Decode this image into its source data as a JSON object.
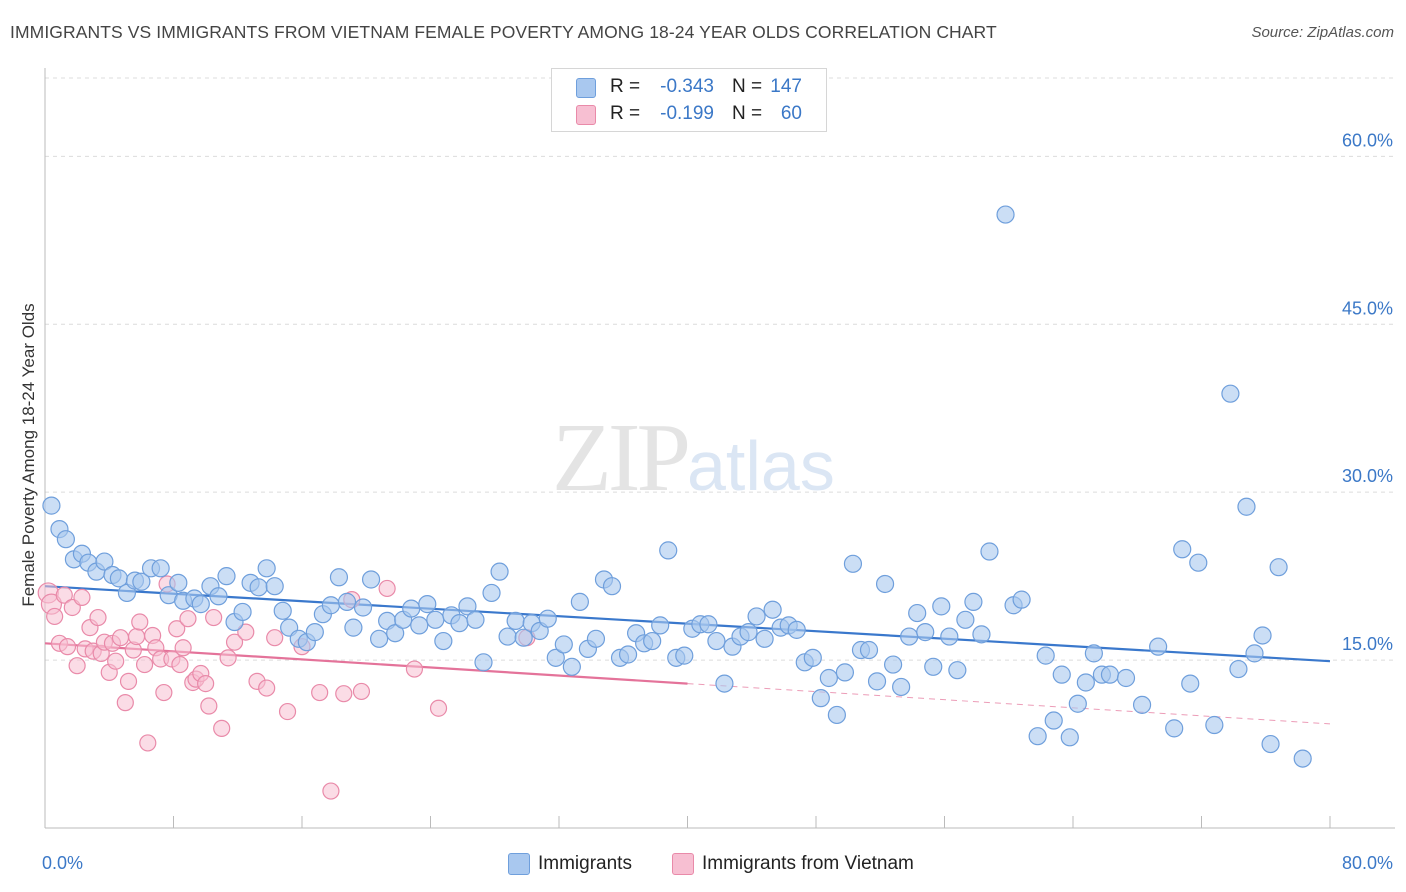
{
  "header": {
    "title": "IMMIGRANTS VS IMMIGRANTS FROM VIETNAM FEMALE POVERTY AMONG 18-24 YEAR OLDS CORRELATION CHART",
    "source": "Source: ZipAtlas.com"
  },
  "watermark": {
    "zip": "ZIP",
    "atlas": "atlas"
  },
  "legend": {
    "rows": [
      {
        "r_label": "R =",
        "r_value": "-0.343",
        "n_label": "N =",
        "n_value": "147",
        "color": "#a9c8ef",
        "border": "#6f9fdc"
      },
      {
        "r_label": "R =",
        "r_value": "-0.199",
        "n_label": "N =",
        "n_value": "60",
        "color": "#f7bfd2",
        "border": "#e98aa9"
      }
    ]
  },
  "bottom_legend": {
    "immigrants": "Immigrants",
    "vietnam": "Immigrants from Vietnam"
  },
  "colors": {
    "blue_fill": "#a9c8ef",
    "blue_stroke": "#6f9fdc",
    "blue_line": "#3a78cc",
    "pink_fill": "#f7bfd2",
    "pink_stroke": "#e98aa9",
    "pink_line": "#e4739a",
    "tick_text": "#3b78c7",
    "grid": "#dcdcdc"
  },
  "chart_data": {
    "type": "scatter",
    "title": "IMMIGRANTS VS IMMIGRANTS FROM VIETNAM FEMALE POVERTY AMONG 18-24 YEAR OLDS CORRELATION CHART",
    "xlabel": "",
    "ylabel": "Female Poverty Among 18-24 Year Olds",
    "xlim": [
      0,
      80
    ],
    "ylim": [
      0,
      67
    ],
    "x_tick_labels": [
      "0.0%",
      "80.0%"
    ],
    "y_ticks": [
      15,
      30,
      45,
      60
    ],
    "y_tick_labels": [
      "15.0%",
      "30.0%",
      "45.0%",
      "60.0%"
    ],
    "grid": true,
    "legend_position": "top-center",
    "series": [
      {
        "name": "Immigrants",
        "trend": {
          "x": [
            0,
            80
          ],
          "y": [
            21.6,
            14.9
          ],
          "dashed_from": null
        },
        "points": [
          [
            0.4,
            28.8
          ],
          [
            0.9,
            26.7
          ],
          [
            1.3,
            25.8
          ],
          [
            1.8,
            24.0
          ],
          [
            2.3,
            24.5
          ],
          [
            2.7,
            23.7
          ],
          [
            3.2,
            22.9
          ],
          [
            3.7,
            23.8
          ],
          [
            4.2,
            22.6
          ],
          [
            4.6,
            22.3
          ],
          [
            5.1,
            21.0
          ],
          [
            5.6,
            22.1
          ],
          [
            6.0,
            22.0
          ],
          [
            6.6,
            23.2
          ],
          [
            7.2,
            23.2
          ],
          [
            7.7,
            20.8
          ],
          [
            8.3,
            21.9
          ],
          [
            8.6,
            20.3
          ],
          [
            9.3,
            20.5
          ],
          [
            9.7,
            20.0
          ],
          [
            10.3,
            21.6
          ],
          [
            10.8,
            20.7
          ],
          [
            11.3,
            22.5
          ],
          [
            11.8,
            18.4
          ],
          [
            12.3,
            19.3
          ],
          [
            12.8,
            21.9
          ],
          [
            13.3,
            21.5
          ],
          [
            13.8,
            23.2
          ],
          [
            14.3,
            21.6
          ],
          [
            14.8,
            19.4
          ],
          [
            15.2,
            17.9
          ],
          [
            15.8,
            16.9
          ],
          [
            16.3,
            16.6
          ],
          [
            16.8,
            17.5
          ],
          [
            17.3,
            19.1
          ],
          [
            17.8,
            19.9
          ],
          [
            18.3,
            22.4
          ],
          [
            18.8,
            20.2
          ],
          [
            19.2,
            17.9
          ],
          [
            19.8,
            19.7
          ],
          [
            20.3,
            22.2
          ],
          [
            20.8,
            16.9
          ],
          [
            21.3,
            18.5
          ],
          [
            21.8,
            17.4
          ],
          [
            22.3,
            18.6
          ],
          [
            22.8,
            19.6
          ],
          [
            23.3,
            18.1
          ],
          [
            23.8,
            20.0
          ],
          [
            24.3,
            18.6
          ],
          [
            24.8,
            16.7
          ],
          [
            25.3,
            19.0
          ],
          [
            25.8,
            18.3
          ],
          [
            26.3,
            19.8
          ],
          [
            26.8,
            18.6
          ],
          [
            27.3,
            14.8
          ],
          [
            27.8,
            21.0
          ],
          [
            28.3,
            22.9
          ],
          [
            28.8,
            17.1
          ],
          [
            29.3,
            18.5
          ],
          [
            29.8,
            17.0
          ],
          [
            30.3,
            18.3
          ],
          [
            30.8,
            17.6
          ],
          [
            31.3,
            18.7
          ],
          [
            31.8,
            15.2
          ],
          [
            32.3,
            16.4
          ],
          [
            32.8,
            14.4
          ],
          [
            33.3,
            20.2
          ],
          [
            33.8,
            16.0
          ],
          [
            34.3,
            16.9
          ],
          [
            34.8,
            22.2
          ],
          [
            35.3,
            21.6
          ],
          [
            35.8,
            15.2
          ],
          [
            36.3,
            15.5
          ],
          [
            36.8,
            17.4
          ],
          [
            37.3,
            16.5
          ],
          [
            37.8,
            16.7
          ],
          [
            38.3,
            18.1
          ],
          [
            38.8,
            24.8
          ],
          [
            39.3,
            15.2
          ],
          [
            39.8,
            15.4
          ],
          [
            40.3,
            17.8
          ],
          [
            40.8,
            18.2
          ],
          [
            41.3,
            18.2
          ],
          [
            41.8,
            16.7
          ],
          [
            42.3,
            12.9
          ],
          [
            42.8,
            16.2
          ],
          [
            43.3,
            17.1
          ],
          [
            43.8,
            17.5
          ],
          [
            44.3,
            18.9
          ],
          [
            44.8,
            16.9
          ],
          [
            45.3,
            19.5
          ],
          [
            45.8,
            17.9
          ],
          [
            46.3,
            18.1
          ],
          [
            46.8,
            17.7
          ],
          [
            47.3,
            14.8
          ],
          [
            47.8,
            15.2
          ],
          [
            48.3,
            11.6
          ],
          [
            48.8,
            13.4
          ],
          [
            49.3,
            10.1
          ],
          [
            49.8,
            13.9
          ],
          [
            50.3,
            23.6
          ],
          [
            50.8,
            15.9
          ],
          [
            51.3,
            15.9
          ],
          [
            51.8,
            13.1
          ],
          [
            52.3,
            21.8
          ],
          [
            52.8,
            14.6
          ],
          [
            53.3,
            12.6
          ],
          [
            53.8,
            17.1
          ],
          [
            54.3,
            19.2
          ],
          [
            54.8,
            17.5
          ],
          [
            55.3,
            14.4
          ],
          [
            55.8,
            19.8
          ],
          [
            56.3,
            17.1
          ],
          [
            56.8,
            14.1
          ],
          [
            57.3,
            18.6
          ],
          [
            57.8,
            20.2
          ],
          [
            58.3,
            17.3
          ],
          [
            58.8,
            24.7
          ],
          [
            59.8,
            54.8
          ],
          [
            60.3,
            19.9
          ],
          [
            60.8,
            20.4
          ],
          [
            61.8,
            8.2
          ],
          [
            62.3,
            15.4
          ],
          [
            62.8,
            9.6
          ],
          [
            63.3,
            13.7
          ],
          [
            63.8,
            8.1
          ],
          [
            64.3,
            11.1
          ],
          [
            64.8,
            13.0
          ],
          [
            65.3,
            15.6
          ],
          [
            65.8,
            13.7
          ],
          [
            66.3,
            13.7
          ],
          [
            67.3,
            13.4
          ],
          [
            68.3,
            11.0
          ],
          [
            69.3,
            16.2
          ],
          [
            70.3,
            8.9
          ],
          [
            70.8,
            24.9
          ],
          [
            71.3,
            12.9
          ],
          [
            71.8,
            23.7
          ],
          [
            72.8,
            9.2
          ],
          [
            73.8,
            38.8
          ],
          [
            74.3,
            14.2
          ],
          [
            74.8,
            28.7
          ],
          [
            75.3,
            15.6
          ],
          [
            75.8,
            17.2
          ],
          [
            76.3,
            7.5
          ],
          [
            76.8,
            23.3
          ],
          [
            78.3,
            6.2
          ]
        ]
      },
      {
        "name": "Immigrants from Vietnam",
        "trend": {
          "x": [
            0,
            40,
            80
          ],
          "y": [
            16.5,
            12.9,
            9.3
          ],
          "dashed_from": 40
        },
        "points": [
          [
            0.2,
            21.0
          ],
          [
            0.4,
            20.0
          ],
          [
            0.6,
            18.9
          ],
          [
            0.9,
            16.5
          ],
          [
            1.2,
            20.8
          ],
          [
            1.4,
            16.2
          ],
          [
            1.7,
            19.7
          ],
          [
            2.0,
            14.5
          ],
          [
            2.3,
            20.6
          ],
          [
            2.5,
            16.0
          ],
          [
            2.8,
            17.9
          ],
          [
            3.0,
            15.8
          ],
          [
            3.3,
            18.8
          ],
          [
            3.5,
            15.6
          ],
          [
            3.7,
            16.6
          ],
          [
            4.0,
            13.9
          ],
          [
            4.2,
            16.5
          ],
          [
            4.4,
            14.9
          ],
          [
            4.7,
            17.0
          ],
          [
            5.0,
            11.2
          ],
          [
            5.2,
            13.1
          ],
          [
            5.5,
            15.9
          ],
          [
            5.7,
            17.1
          ],
          [
            5.9,
            18.4
          ],
          [
            6.2,
            14.6
          ],
          [
            6.4,
            7.6
          ],
          [
            6.7,
            17.2
          ],
          [
            6.9,
            16.1
          ],
          [
            7.2,
            15.1
          ],
          [
            7.4,
            12.1
          ],
          [
            7.6,
            21.8
          ],
          [
            7.9,
            15.1
          ],
          [
            8.2,
            17.8
          ],
          [
            8.4,
            14.6
          ],
          [
            8.6,
            16.1
          ],
          [
            8.9,
            18.7
          ],
          [
            9.2,
            13.0
          ],
          [
            9.4,
            13.3
          ],
          [
            9.7,
            13.8
          ],
          [
            10.0,
            12.9
          ],
          [
            10.2,
            10.9
          ],
          [
            10.5,
            18.8
          ],
          [
            11.0,
            8.9
          ],
          [
            11.4,
            15.2
          ],
          [
            11.8,
            16.6
          ],
          [
            12.5,
            17.5
          ],
          [
            13.2,
            13.1
          ],
          [
            13.8,
            12.5
          ],
          [
            14.3,
            17.0
          ],
          [
            15.1,
            10.4
          ],
          [
            16.0,
            16.2
          ],
          [
            17.1,
            12.1
          ],
          [
            17.8,
            3.3
          ],
          [
            18.6,
            12.0
          ],
          [
            19.1,
            20.4
          ],
          [
            19.7,
            12.2
          ],
          [
            21.3,
            21.4
          ],
          [
            23.0,
            14.2
          ],
          [
            24.5,
            10.7
          ],
          [
            30.0,
            17.0
          ]
        ]
      }
    ]
  }
}
